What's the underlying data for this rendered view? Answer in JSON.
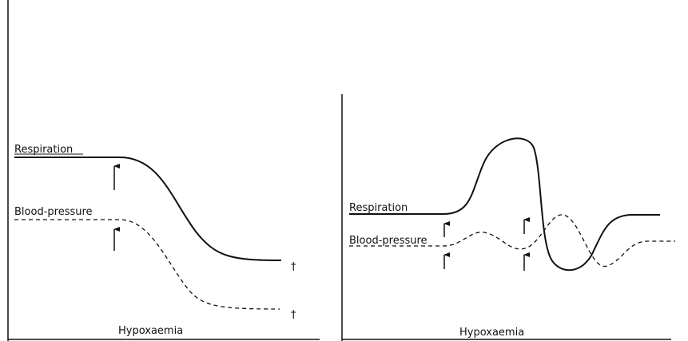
{
  "panels": [
    {
      "curves": [
        {
          "label": "Respiration",
          "end_mark": "†"
        },
        {
          "label": "Blood-pressure",
          "end_mark": "†"
        }
      ],
      "xlabel": "Hypoxaemia"
    },
    {
      "curves": [
        {
          "label": "Respiration"
        },
        {
          "label": "Blood-pressure"
        }
      ],
      "xlabel": "Hypoxaemia"
    }
  ]
}
